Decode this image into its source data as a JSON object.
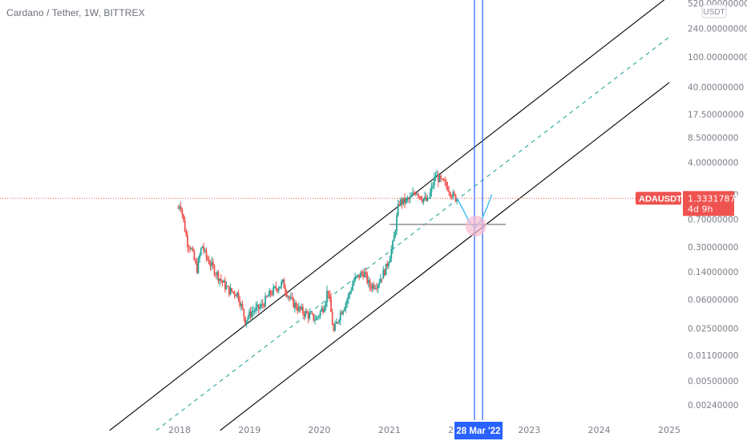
{
  "header": {
    "title": "Cardano / Tether, 1W, BITTREX"
  },
  "colors": {
    "up": "#26a69a",
    "down": "#ef5350",
    "channel": "#000000",
    "midline": "#26a69a",
    "vline": "#2962ff",
    "support": "#9598a1",
    "projection": "#4fc3f7",
    "highlight": "#f8bbd0",
    "last_price": "#ef5350",
    "axis_text": "#7b7f89"
  },
  "chart_data": {
    "type": "candlestick",
    "symbol": "ADAUSDT",
    "currency": "USDT",
    "last_price": "1.33317870",
    "countdown": "4d 9h",
    "cursor_date": "28 Mar '22",
    "y_scale": "log",
    "y_ticks": [
      "520.00000000",
      "240.00000000",
      "100.00000000",
      "40.00000000",
      "17.50000000",
      "8.50000000",
      "4.00000000",
      "1.50000000",
      "0.70000000",
      "0.30000000",
      "0.14000000",
      "0.06000000",
      "0.02500000",
      "0.01100000",
      "0.00500000",
      "0.00240000"
    ],
    "x_ticks": [
      "2018",
      "2019",
      "2020",
      "2021",
      "2022",
      "2023",
      "2024",
      "2025"
    ],
    "ylim": [
      0.0015,
      700
    ],
    "grid": false,
    "price_path": [
      [
        "2017-10-01",
        0.03
      ],
      [
        "2017-11-15",
        0.1
      ],
      [
        "2017-12-20",
        0.9
      ],
      [
        "2018-01-05",
        1.2
      ],
      [
        "2018-01-20",
        0.7
      ],
      [
        "2018-02-10",
        0.35
      ],
      [
        "2018-03-01",
        0.3
      ],
      [
        "2018-04-01",
        0.15
      ],
      [
        "2018-04-28",
        0.32
      ],
      [
        "2018-05-20",
        0.22
      ],
      [
        "2018-07-01",
        0.15
      ],
      [
        "2018-08-15",
        0.1
      ],
      [
        "2018-09-15",
        0.08
      ],
      [
        "2018-11-01",
        0.072
      ],
      [
        "2018-12-10",
        0.032
      ],
      [
        "2019-01-15",
        0.042
      ],
      [
        "2019-03-01",
        0.048
      ],
      [
        "2019-04-15",
        0.07
      ],
      [
        "2019-05-25",
        0.088
      ],
      [
        "2019-06-25",
        0.1
      ],
      [
        "2019-08-01",
        0.06
      ],
      [
        "2019-09-15",
        0.045
      ],
      [
        "2019-11-01",
        0.038
      ],
      [
        "2019-12-15",
        0.033
      ],
      [
        "2020-01-25",
        0.05
      ],
      [
        "2020-02-15",
        0.085
      ],
      [
        "2020-03-15",
        0.022
      ],
      [
        "2020-04-15",
        0.038
      ],
      [
        "2020-05-25",
        0.06
      ],
      [
        "2020-07-01",
        0.11
      ],
      [
        "2020-08-20",
        0.14
      ],
      [
        "2020-09-20",
        0.09
      ],
      [
        "2020-11-01",
        0.1
      ],
      [
        "2020-12-15",
        0.16
      ],
      [
        "2021-01-20",
        0.33
      ],
      [
        "2021-02-20",
        1.2
      ],
      [
        "2021-03-15",
        1.2
      ],
      [
        "2021-04-20",
        1.3
      ],
      [
        "2021-05-20",
        1.7
      ],
      [
        "2021-06-20",
        1.35
      ],
      [
        "2021-07-20",
        1.2
      ],
      [
        "2021-08-30",
        2.7
      ],
      [
        "2021-09-30",
        2.2
      ],
      [
        "2021-11-01",
        1.9
      ],
      [
        "2021-12-01",
        1.4
      ],
      [
        "2021-12-20",
        1.33
      ]
    ],
    "channel_upper": [
      [
        "2017-01-01",
        0.0011
      ],
      [
        "2025-01-01",
        650
      ]
    ],
    "channel_mid": [
      [
        "2017-09-01",
        0.0011
      ],
      [
        "2025-01-01",
        185
      ]
    ],
    "channel_lower": [
      [
        "2018-08-01",
        0.0011
      ],
      [
        "2025-01-01",
        46
      ]
    ],
    "support_level": 0.6,
    "support_range": [
      "2021-01-01",
      "2022-09-01"
    ],
    "projection": [
      [
        "2021-12-20",
        1.33
      ],
      [
        "2022-01-25",
        0.9
      ],
      [
        "2022-02-25",
        0.62
      ],
      [
        "2022-03-28",
        0.55
      ],
      [
        "2022-04-25",
        0.68
      ],
      [
        "2022-05-25",
        1.0
      ],
      [
        "2022-06-20",
        1.5
      ]
    ],
    "projection_highlight": [
      "2022-03-28",
      0.57
    ],
    "vertical_lines": [
      "2022-03-21",
      "2022-05-02"
    ]
  }
}
